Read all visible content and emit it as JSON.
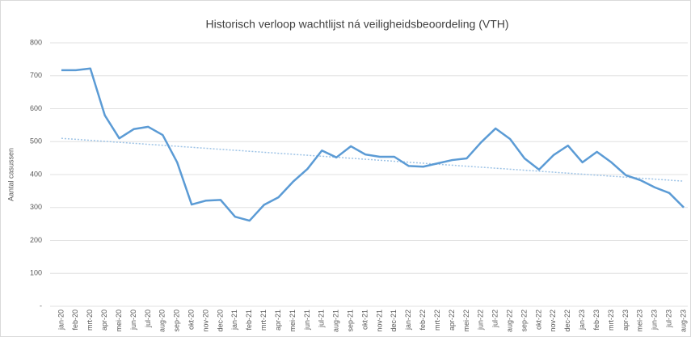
{
  "chart_data": {
    "type": "line",
    "title": "Historisch verloop wachtlijst ná veiligheidsbeoordeling (VTH)",
    "ylabel": "Aantal casussen",
    "categories": [
      "jan-20",
      "feb-20",
      "mrt-20",
      "apr-20",
      "mei-20",
      "jun-20",
      "jul-20",
      "aug-20",
      "sep-20",
      "okt-20",
      "nov-20",
      "dec-20",
      "jan-21",
      "feb-21",
      "mrt-21",
      "apr-21",
      "mei-21",
      "jun-21",
      "jul-21",
      "aug-21",
      "sep-21",
      "okt-21",
      "nov-21",
      "dec-21",
      "jan-22",
      "feb-22",
      "mrt-22",
      "apr-22",
      "mei-22",
      "jun-22",
      "jul-22",
      "aug-22",
      "sep-22",
      "okt-22",
      "nov-22",
      "dec-22",
      "jan-23",
      "feb-23",
      "mrt-23",
      "apr-23",
      "mei-23",
      "jun-23",
      "jul-23",
      "aug-23"
    ],
    "series": [
      {
        "color": "#5b9bd5",
        "values": [
          717,
          717,
          722,
          580,
          510,
          538,
          545,
          520,
          437,
          309,
          321,
          323,
          272,
          260,
          308,
          331,
          378,
          417,
          473,
          452,
          486,
          461,
          454,
          454,
          426,
          424,
          434,
          444,
          449,
          498,
          540,
          508,
          449,
          415,
          459,
          488,
          437,
          469,
          437,
          398,
          383,
          361,
          344,
          300
        ]
      }
    ],
    "trendline": {
      "color": "#9dc3e6",
      "values": [
        510,
        380
      ]
    },
    "ylim": [
      0,
      800
    ],
    "yticks": [
      {
        "value": 0,
        "label": "-"
      },
      100,
      200,
      300,
      400,
      500,
      600,
      700,
      800
    ],
    "grid": true
  }
}
